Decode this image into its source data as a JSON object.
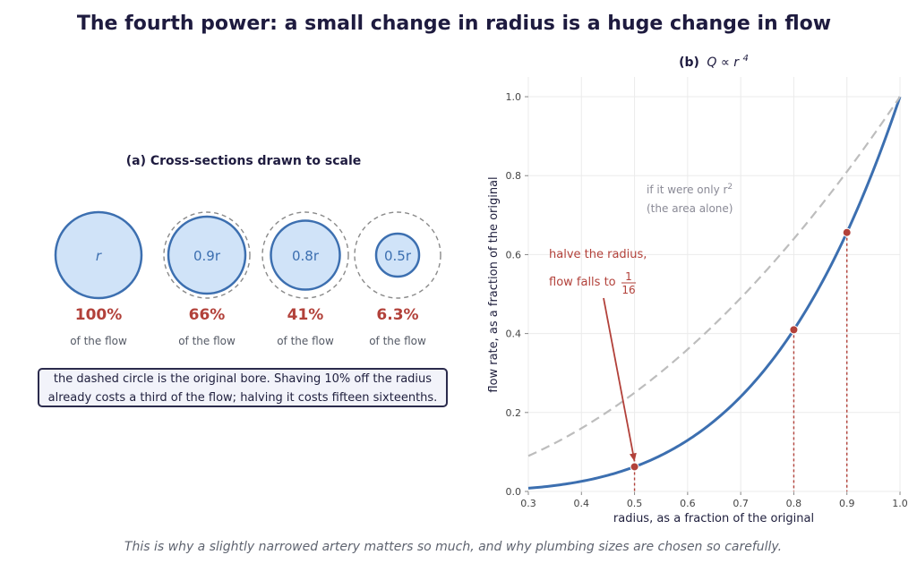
{
  "title": "The fourth power: a small change in radius is a huge change in flow",
  "footer": "This is why a slightly narrowed artery matters so much, and why plumbing sizes are chosen so carefully.",
  "colors": {
    "accent_red": "#b2413a",
    "curve_blue": "#3c6fb0",
    "fill_blue": "#d0e3f8",
    "dash_grey": "#bdbdbd",
    "note_bg": "#f2f3fa"
  },
  "panel_a": {
    "title": "(a) Cross-sections drawn to scale",
    "flow_suffix": "of the flow",
    "circles": [
      {
        "radius_label": "r",
        "radius_factor": 1.0,
        "percent": "100%",
        "dashed_original": false
      },
      {
        "radius_label": "0.9r",
        "radius_factor": 0.9,
        "percent": "66%",
        "dashed_original": true
      },
      {
        "radius_label": "0.8r",
        "radius_factor": 0.8,
        "percent": "41%",
        "dashed_original": true
      },
      {
        "radius_label": "0.5r",
        "radius_factor": 0.5,
        "percent": "6.3%",
        "dashed_original": true
      }
    ],
    "note_line1": "the dashed circle is the original bore. Shaving 10% off the radius",
    "note_line2": "already costs a third of the flow; halving it costs fifteen sixteenths."
  },
  "chart_data": {
    "type": "line",
    "title_prefix": "(b)",
    "title_formula": "Q ∝ r",
    "title_exponent": "4",
    "xlabel": "radius, as a fraction of the original",
    "ylabel": "flow rate, as a fraction of the original",
    "xlim": [
      0.3,
      1.0
    ],
    "ylim": [
      0.0,
      1.05
    ],
    "xticks": [
      0.3,
      0.4,
      0.5,
      0.6,
      0.7,
      0.8,
      0.9,
      1.0
    ],
    "yticks": [
      0.0,
      0.2,
      0.4,
      0.6,
      0.8,
      1.0
    ],
    "xtick_labels": [
      "0.3",
      "0.4",
      "0.5",
      "0.6",
      "0.7",
      "0.8",
      "0.9",
      "1.0"
    ],
    "ytick_labels": [
      "0.0",
      "0.2",
      "0.4",
      "0.6",
      "0.8",
      "1.0"
    ],
    "grid": true,
    "series": [
      {
        "exponent": 4,
        "style": "solid"
      },
      {
        "exponent": 2,
        "style": "dashed"
      }
    ],
    "markers": [
      {
        "x": 0.5,
        "y": 0.0625
      },
      {
        "x": 0.8,
        "y": 0.4096
      },
      {
        "x": 0.9,
        "y": 0.6561
      }
    ],
    "annotation_squared_line1": "if it were only r",
    "annotation_squared_exponent": "2",
    "annotation_squared_line2": "(the area alone)",
    "annotation_halve_line1": "halve the radius,",
    "annotation_halve_line2": "flow falls to",
    "annotation_halve_num": "1",
    "annotation_halve_den": "16"
  }
}
